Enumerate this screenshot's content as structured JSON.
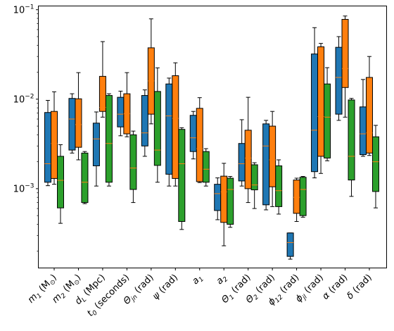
{
  "chart_data": {
    "type": "box",
    "title": "",
    "xlabel": "",
    "ylabel": "",
    "yscale": "log",
    "ylim": [
      0.00013,
      0.11
    ],
    "y_ticks": [
      {
        "value": 0.001,
        "base": "10",
        "exp": "−3"
      },
      {
        "value": 0.01,
        "base": "10",
        "exp": "−2"
      },
      {
        "value": 0.1,
        "base": "10",
        "exp": "−1"
      }
    ],
    "legend": "none",
    "grid": false,
    "categories": [
      {
        "main": "m",
        "sub": "1",
        "rest": " (M",
        "rsub": "⊙",
        "end": ")"
      },
      {
        "main": "m",
        "sub": "2",
        "rest": " (M",
        "rsub": "⊙",
        "end": ")"
      },
      {
        "main": "d",
        "sub": "L",
        "rest": " (Mpc)"
      },
      {
        "main": "t",
        "sub": "0",
        "rest": " (seconds)"
      },
      {
        "main": "Θ",
        "sub": "jn",
        "rest": " (rad)"
      },
      {
        "main": "ψ",
        "rest": " (rad)"
      },
      {
        "main": "a",
        "sub": "1"
      },
      {
        "main": "a",
        "sub": "2"
      },
      {
        "main": "Θ",
        "sub": "1",
        "rest": " (rad)"
      },
      {
        "main": "Θ",
        "sub": "2",
        "rest": " (rad)"
      },
      {
        "main": "ϕ",
        "sub": "12",
        "rest": " (rad)"
      },
      {
        "main": "ϕ",
        "sub": "jl",
        "rest": " (rad)"
      },
      {
        "main": "α",
        "rest": " (rad)"
      },
      {
        "main": "δ",
        "rest": " (rad)"
      }
    ],
    "series": [
      {
        "color": "#1f77b4",
        "boxes": [
          {
            "min": 0.00108,
            "q1": 0.00118,
            "med": 0.0019,
            "q3": 0.0071,
            "max": 0.0097
          },
          {
            "min": 0.0025,
            "q1": 0.0027,
            "med": 0.006,
            "q3": 0.0102,
            "max": 0.0115
          },
          {
            "min": 0.00107,
            "q1": 0.0018,
            "med": 0.0036,
            "q3": 0.0054,
            "max": 0.0072
          },
          {
            "min": 0.0039,
            "q1": 0.0049,
            "med": 0.0068,
            "q3": 0.0105,
            "max": 0.0123
          },
          {
            "min": 0.0023,
            "q1": 0.003,
            "med": 0.0042,
            "q3": 0.011,
            "max": 0.0127
          },
          {
            "min": 0.00107,
            "q1": 0.00145,
            "med": 0.0065,
            "q3": 0.0148,
            "max": 0.0172
          },
          {
            "min": 0.00215,
            "q1": 0.0026,
            "med": 0.0037,
            "q3": 0.0066,
            "max": 0.0073
          },
          {
            "min": 0.00045,
            "q1": 0.00057,
            "med": 0.00088,
            "q3": 0.00112,
            "max": 0.00132
          },
          {
            "min": 0.00107,
            "q1": 0.00122,
            "med": 0.0019,
            "q3": 0.0032,
            "max": 0.0059
          },
          {
            "min": 0.00058,
            "q1": 0.00066,
            "med": 0.003,
            "q3": 0.0053,
            "max": 0.0058
          },
          {
            "min": 0.000163,
            "q1": 0.000175,
            "med": 0.00025,
            "q3": 0.00032,
            "max": 0.00032
          },
          {
            "min": 0.00132,
            "q1": 0.00155,
            "med": 0.0045,
            "q3": 0.032,
            "max": 0.063
          },
          {
            "min": 0.0058,
            "q1": 0.0068,
            "med": 0.0175,
            "q3": 0.038,
            "max": 0.05
          },
          {
            "min": 0.0023,
            "q1": 0.0024,
            "med": 0.0041,
            "q3": 0.0082,
            "max": 0.0166
          }
        ]
      },
      {
        "color": "#ff7f0e",
        "boxes": [
          {
            "min": 0.00112,
            "q1": 0.0013,
            "med": 0.0032,
            "q3": 0.0073,
            "max": 0.0121
          },
          {
            "min": 0.0021,
            "q1": 0.0029,
            "med": 0.0052,
            "q3": 0.0101,
            "max": 0.0198
          },
          {
            "min": 0.0063,
            "q1": 0.0073,
            "med": 0.0081,
            "q3": 0.018,
            "max": 0.044
          },
          {
            "min": 0.0038,
            "q1": 0.0041,
            "med": 0.0069,
            "q3": 0.0115,
            "max": 0.0198
          },
          {
            "min": 0.0053,
            "q1": 0.0068,
            "med": 0.016,
            "q3": 0.0375,
            "max": 0.079
          },
          {
            "min": 0.00107,
            "q1": 0.0013,
            "med": 0.0061,
            "q3": 0.0183,
            "max": 0.0255
          },
          {
            "min": 0.00117,
            "q1": 0.0012,
            "med": 0.0028,
            "q3": 0.0079,
            "max": 0.0104
          },
          {
            "min": 0.00023,
            "q1": 0.00042,
            "med": 0.00092,
            "q3": 0.00138,
            "max": 0.00192
          },
          {
            "min": 0.0007,
            "q1": 0.001,
            "med": 0.0022,
            "q3": 0.0045,
            "max": 0.0105
          },
          {
            "min": 0.00063,
            "q1": 0.00105,
            "med": 0.0021,
            "q3": 0.005,
            "max": 0.0073
          },
          {
            "min": 0.00043,
            "q1": 0.00053,
            "med": 0.0008,
            "q3": 0.00125,
            "max": 0.00131
          },
          {
            "min": 0.00148,
            "q1": 0.0023,
            "med": 0.0064,
            "q3": 0.0385,
            "max": 0.042
          },
          {
            "min": 0.0063,
            "q1": 0.0135,
            "med": 0.022,
            "q3": 0.078,
            "max": 0.085
          },
          {
            "min": 0.00235,
            "q1": 0.0025,
            "med": 0.0042,
            "q3": 0.0175,
            "max": 0.03
          }
        ]
      },
      {
        "color": "#2ca02c",
        "boxes": [
          {
            "min": 0.00041,
            "q1": 0.00061,
            "med": 0.00124,
            "q3": 0.0023,
            "max": 0.0031
          },
          {
            "min": 0.00068,
            "q1": 0.0007,
            "med": 0.00118,
            "q3": 0.0025,
            "max": 0.0026
          },
          {
            "min": 0.00107,
            "q1": 0.00118,
            "med": 0.0032,
            "q3": 0.011,
            "max": 0.0115
          },
          {
            "min": 0.0007,
            "q1": 0.00098,
            "med": 0.0017,
            "q3": 0.004,
            "max": 0.0044
          },
          {
            "min": 0.00118,
            "q1": 0.00182,
            "med": 0.0027,
            "q3": 0.0122,
            "max": 0.0224
          },
          {
            "min": 0.00035,
            "q1": 0.00043,
            "med": 0.0019,
            "q3": 0.0046,
            "max": 0.0048
          },
          {
            "min": 0.00107,
            "q1": 0.00118,
            "med": 0.00165,
            "q3": 0.0026,
            "max": 0.0028
          },
          {
            "min": 0.00037,
            "q1": 0.0004,
            "med": 0.00098,
            "q3": 0.00131,
            "max": 0.00137
          },
          {
            "min": 0.0006,
            "q1": 0.00097,
            "med": 0.0011,
            "q3": 0.00185,
            "max": 0.00195
          },
          {
            "min": 0.00052,
            "q1": 0.00063,
            "med": 0.00095,
            "q3": 0.0018,
            "max": 0.0021
          },
          {
            "min": 0.00048,
            "q1": 0.0005,
            "med": 0.00098,
            "q3": 0.00134,
            "max": 0.00137
          },
          {
            "min": 0.00205,
            "q1": 0.0022,
            "med": 0.0063,
            "q3": 0.0148,
            "max": 0.0225
          },
          {
            "min": 0.00082,
            "q1": 0.00125,
            "med": 0.0023,
            "q3": 0.0098,
            "max": 0.0102
          },
          {
            "min": 0.00061,
            "q1": 0.00093,
            "med": 0.002,
            "q3": 0.0038,
            "max": 0.0051
          }
        ]
      }
    ]
  }
}
